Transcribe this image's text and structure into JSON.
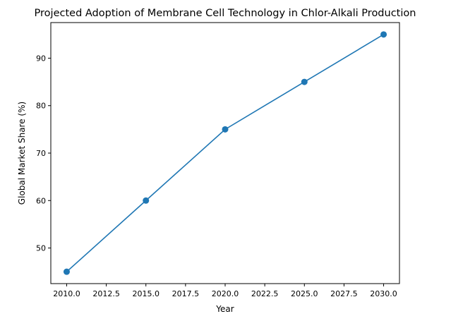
{
  "chart_data": {
    "type": "line",
    "title": "Projected Adoption of Membrane Cell Technology in Chlor-Alkali Production",
    "xlabel": "Year",
    "ylabel": "Global Market Share (%)",
    "x": [
      2010,
      2015,
      2020,
      2025,
      2030
    ],
    "series": [
      {
        "values": [
          45,
          60,
          75,
          85,
          95
        ],
        "color": "#1f77b4",
        "marker": "circle"
      }
    ],
    "xlim": [
      2009,
      2031
    ],
    "ylim": [
      42.5,
      97.5
    ],
    "xticks": [
      "2010.0",
      "2012.5",
      "2015.0",
      "2017.5",
      "2020.0",
      "2022.5",
      "2025.0",
      "2027.5",
      "2030.0"
    ],
    "yticks": [
      "50",
      "60",
      "70",
      "80",
      "90"
    ],
    "grid": false
  }
}
